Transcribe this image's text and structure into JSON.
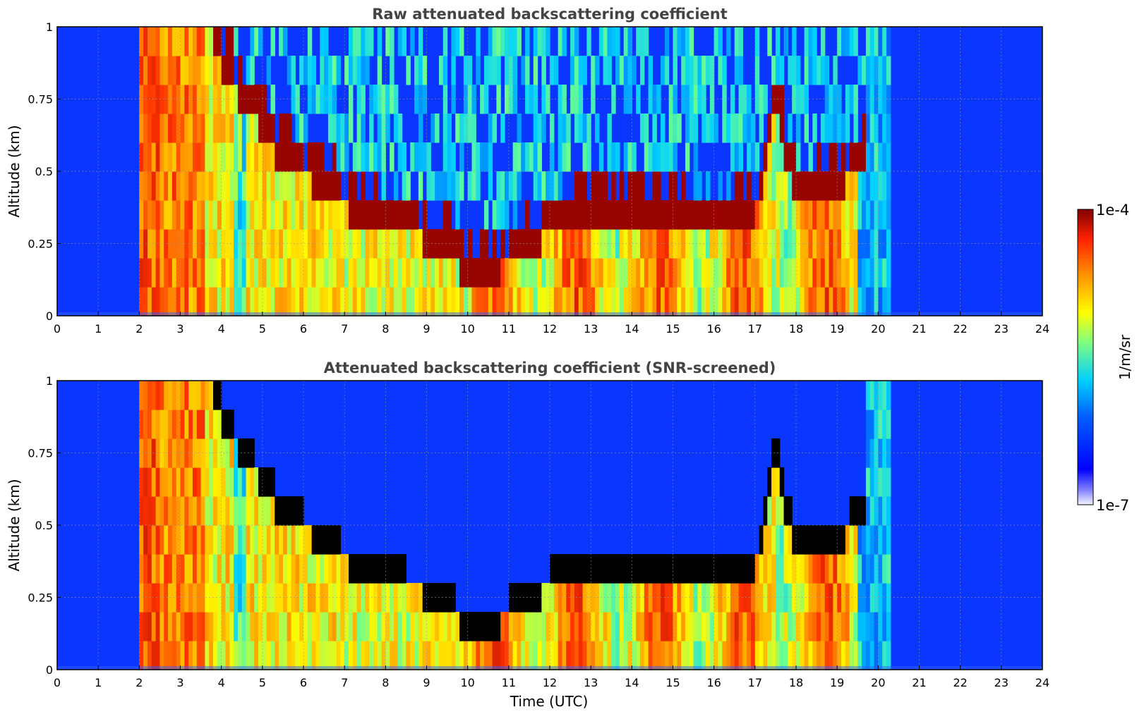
{
  "chart_data": [
    {
      "type": "heatmap",
      "title": "Raw attenuated backscattering coefficient",
      "xlabel": "",
      "ylabel": "Altitude (km)",
      "xlim": [
        0,
        24
      ],
      "ylim": [
        0,
        1
      ],
      "x_ticks": [
        "0",
        "1",
        "2",
        "3",
        "4",
        "5",
        "6",
        "7",
        "8",
        "9",
        "10",
        "11",
        "12",
        "13",
        "14",
        "15",
        "16",
        "17",
        "18",
        "19",
        "20",
        "21",
        "22",
        "23",
        "24"
      ],
      "y_ticks": [
        "0",
        "0.25",
        "0.5",
        "0.75",
        "1"
      ],
      "grid": true,
      "screened": false,
      "boundary_layer_top_km": [
        {
          "x": 3.8,
          "y": 0.95
        },
        {
          "x": 4.5,
          "y": 0.75
        },
        {
          "x": 5.5,
          "y": 0.55
        },
        {
          "x": 6.5,
          "y": 0.45
        },
        {
          "x": 7.5,
          "y": 0.33
        },
        {
          "x": 8.5,
          "y": 0.3
        },
        {
          "x": 9.5,
          "y": 0.25
        },
        {
          "x": 10.0,
          "y": 0.12
        },
        {
          "x": 11.0,
          "y": 0.2
        },
        {
          "x": 12.0,
          "y": 0.3
        },
        {
          "x": 13.0,
          "y": 0.35
        },
        {
          "x": 14.0,
          "y": 0.38
        },
        {
          "x": 15.0,
          "y": 0.33
        },
        {
          "x": 16.0,
          "y": 0.3
        },
        {
          "x": 17.0,
          "y": 0.35
        },
        {
          "x": 17.5,
          "y": 0.75
        },
        {
          "x": 18.0,
          "y": 0.4
        },
        {
          "x": 19.0,
          "y": 0.45
        },
        {
          "x": 19.7,
          "y": 0.55
        }
      ]
    },
    {
      "type": "heatmap",
      "title": "Attenuated backscattering coefficient (SNR-screened)",
      "xlabel": "Time (UTC)",
      "ylabel": "Altitude (km)",
      "xlim": [
        0,
        24
      ],
      "ylim": [
        0,
        1
      ],
      "x_ticks": [
        "0",
        "1",
        "2",
        "3",
        "4",
        "5",
        "6",
        "7",
        "8",
        "9",
        "10",
        "11",
        "12",
        "13",
        "14",
        "15",
        "16",
        "17",
        "18",
        "19",
        "20",
        "21",
        "22",
        "23",
        "24"
      ],
      "y_ticks": [
        "0",
        "0.25",
        "0.5",
        "0.75",
        "1"
      ],
      "grid": true,
      "screened": true
    }
  ],
  "colorbar": {
    "label": "1/m/sr",
    "max_label": "1e-4",
    "min_label": "1e-7",
    "min": 1e-07,
    "max": 0.0001,
    "scale": "log",
    "colormap": [
      "#ffffff",
      "#0010ff",
      "#00c0ff",
      "#ffff00",
      "#ff8000",
      "#ff2000",
      "#800000"
    ]
  }
}
